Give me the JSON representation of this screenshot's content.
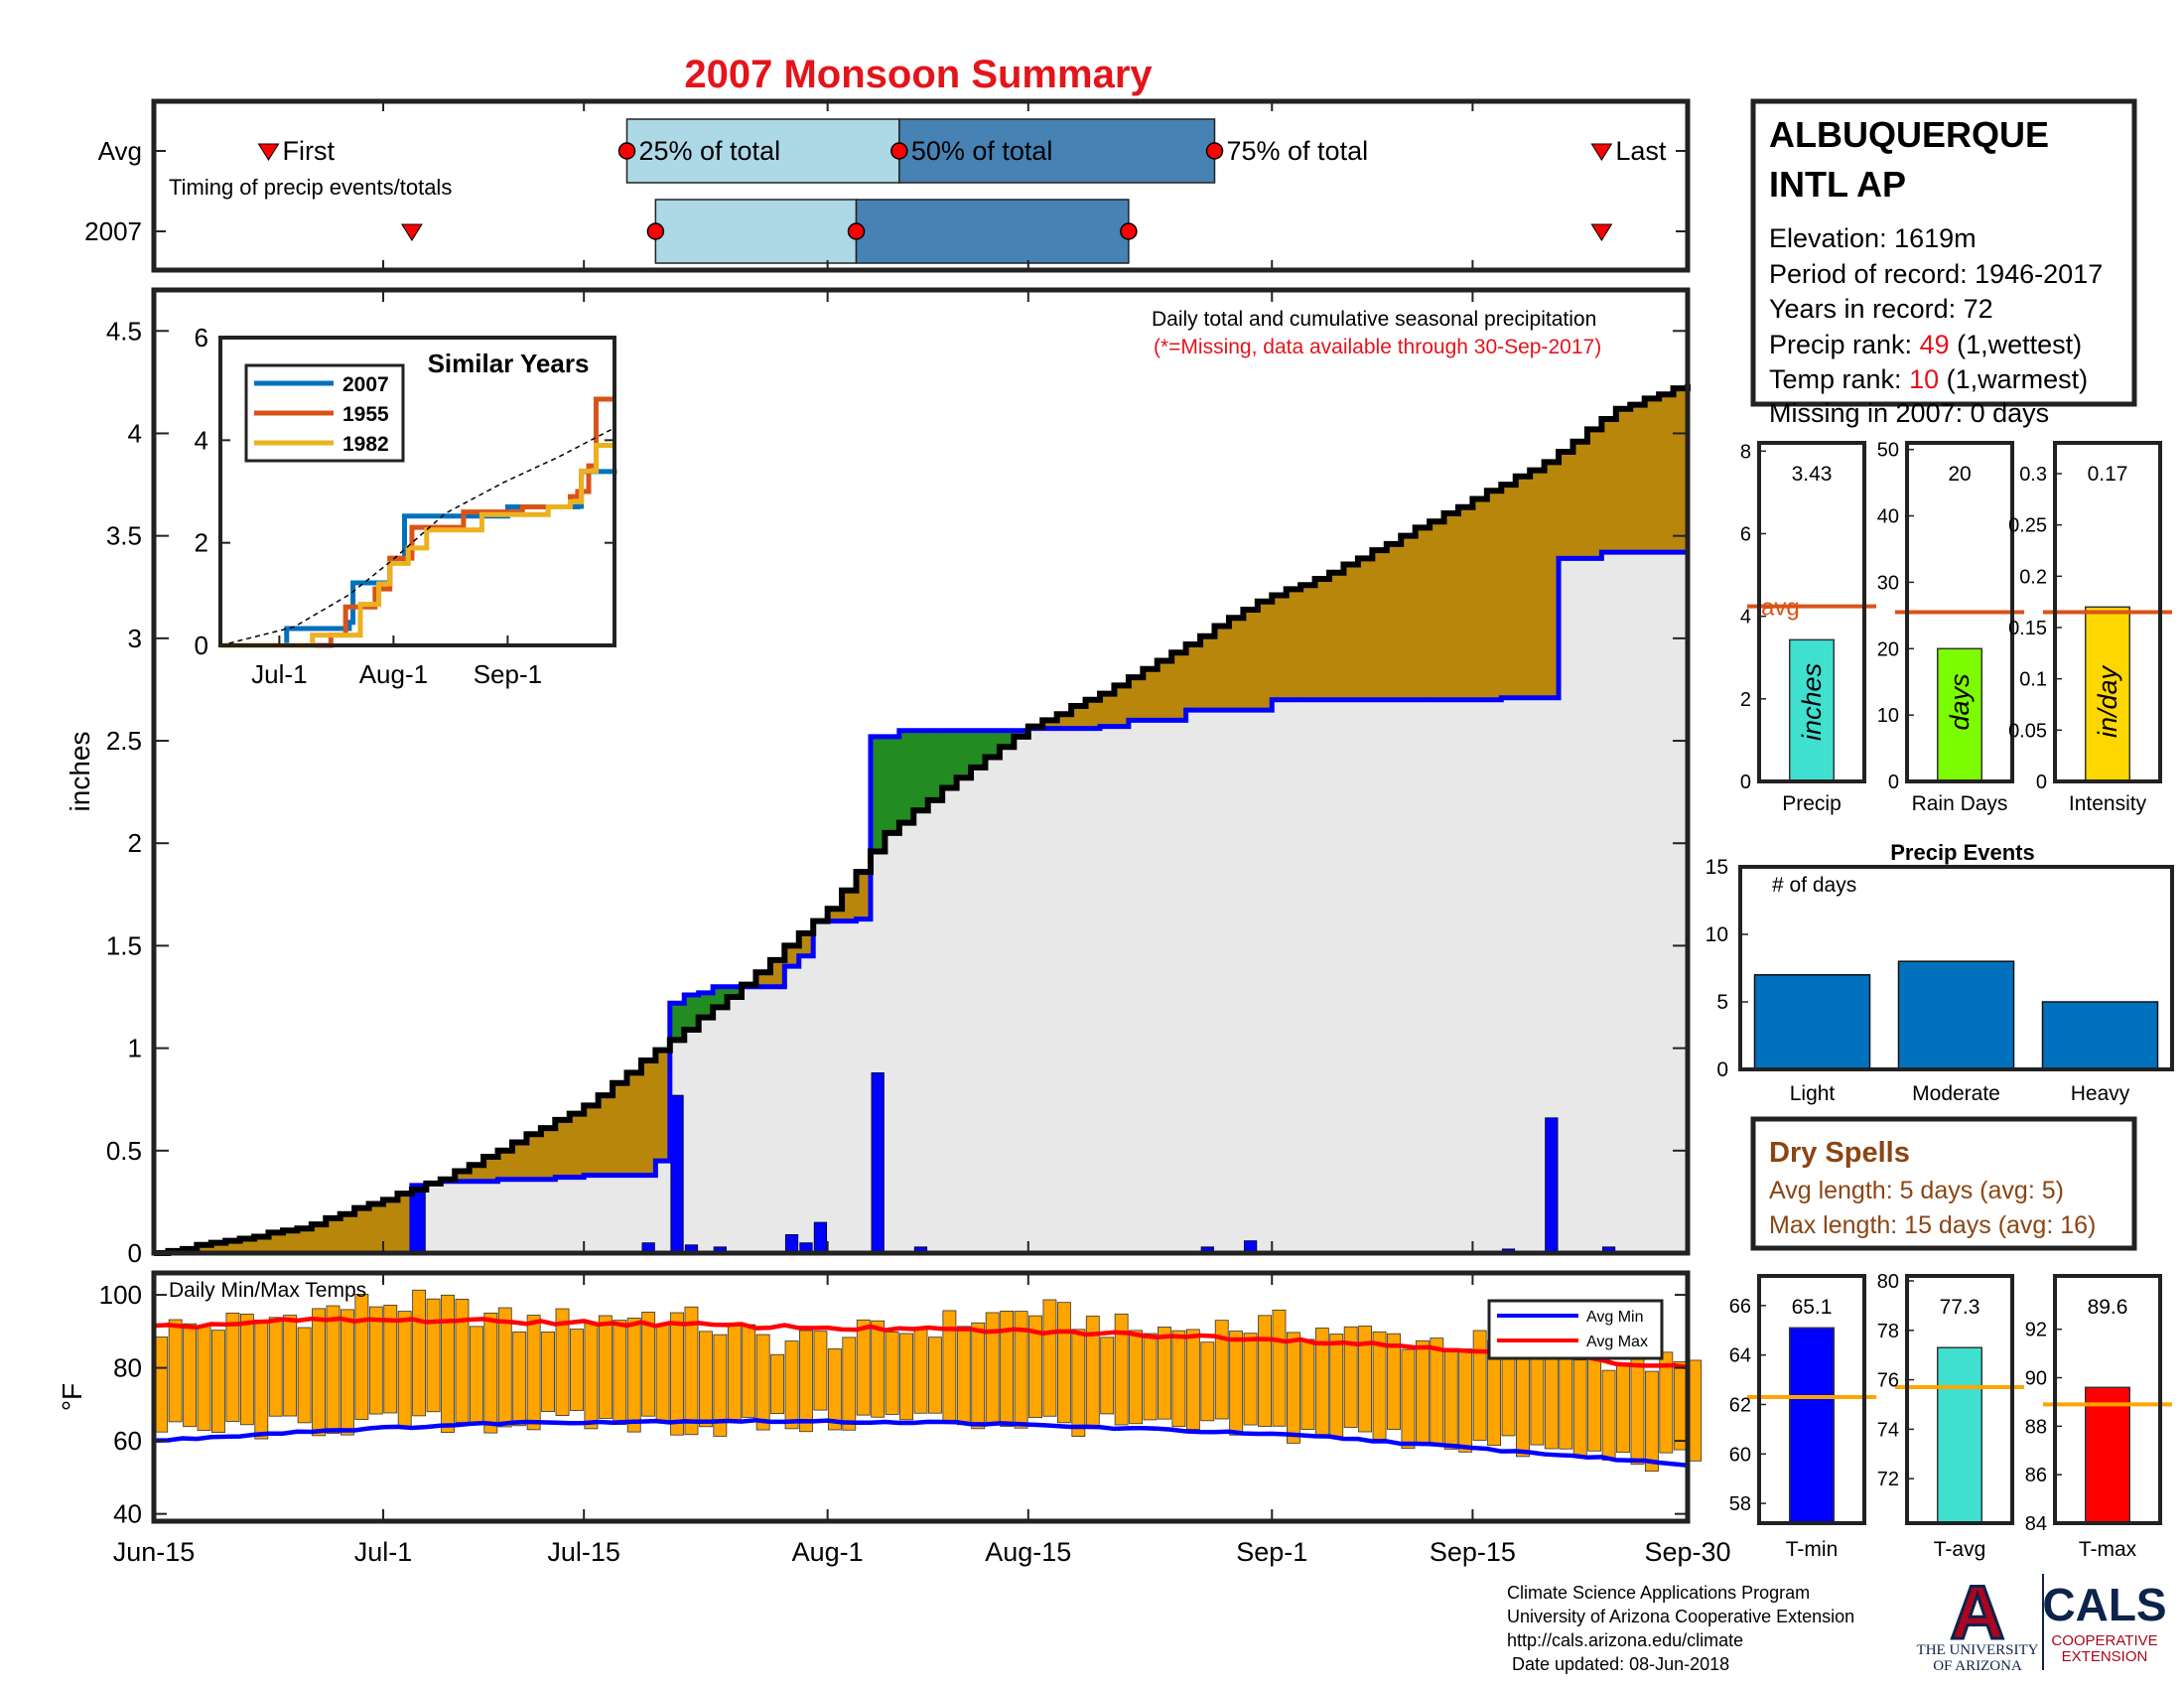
{
  "title": "2007 Monsoon Summary",
  "colors": {
    "title": "#e4141b",
    "cum2007": "#000000",
    "cumAvg": "#0000ff",
    "aboveFill": "#b8860b",
    "belowFill": "#228b22",
    "avgArea": "#e8e8e8",
    "dailyBar": "#0000ff",
    "q1": "#add8e6",
    "q2": "#4682b4",
    "marker": "#ff0000",
    "tempBar": "#ffa500",
    "avgMin": "#0000ff",
    "avgMax": "#ff0000",
    "avgLine": "#d95319",
    "tAvgLine": "#ffa500",
    "eventBar": "#0072bd",
    "drySpells": "#8b4513",
    "uaRed": "#ab0520",
    "uaBlue": "#0c234b"
  },
  "timing": {
    "row_labels": [
      "Avg",
      "2007"
    ],
    "caption": "Timing of precip events/totals",
    "labels": {
      "first": "First",
      "q25": "25% of total",
      "q50": "50% of total",
      "q75": "75% of total",
      "last": "Last"
    },
    "avg": {
      "first": "2007-06-23",
      "q25": "2007-07-18",
      "q50": "2007-08-06",
      "q75": "2007-08-28",
      "last": "2007-09-24"
    },
    "y2007": {
      "first": "2007-07-03",
      "q25": "2007-07-20",
      "q50": "2007-08-03",
      "q75": "2007-08-22",
      "last": "2007-09-24"
    }
  },
  "chart_data": [
    {
      "name": "cumulative_precip",
      "type": "area",
      "annotation": "Daily total and cumulative seasonal precipitation",
      "missing_note": "(*=Missing, data available through 30-Sep-2017)",
      "ylabel": "inches",
      "ylim": [
        0,
        4.7
      ],
      "yticks": [
        0,
        0.5,
        1,
        1.5,
        2,
        2.5,
        3,
        3.5,
        4,
        4.5
      ],
      "xlim": [
        "2007-06-15",
        "2007-09-30"
      ],
      "xticks": [
        {
          "date": "2007-06-15",
          "label": "Jun-15"
        },
        {
          "date": "2007-07-01",
          "label": "Jul-1"
        },
        {
          "date": "2007-07-15",
          "label": "Jul-15"
        },
        {
          "date": "2007-08-01",
          "label": "Aug-1"
        },
        {
          "date": "2007-08-15",
          "label": "Aug-15"
        },
        {
          "date": "2007-09-01",
          "label": "Sep-1"
        },
        {
          "date": "2007-09-15",
          "label": "Sep-15"
        },
        {
          "date": "2007-09-30",
          "label": "Sep-30"
        }
      ],
      "avg_cumulative_curve": [
        [
          "2007-06-15",
          0.0
        ],
        [
          "2007-06-25",
          0.12
        ],
        [
          "2007-07-05",
          0.36
        ],
        [
          "2007-07-15",
          0.72
        ],
        [
          "2007-07-20",
          0.99
        ],
        [
          "2007-07-25",
          1.25
        ],
        [
          "2007-08-01",
          1.68
        ],
        [
          "2007-08-05",
          2.05
        ],
        [
          "2007-08-10",
          2.32
        ],
        [
          "2007-08-15",
          2.57
        ],
        [
          "2007-08-20",
          2.73
        ],
        [
          "2007-08-25",
          2.93
        ],
        [
          "2007-08-31",
          3.18
        ],
        [
          "2007-09-05",
          3.32
        ],
        [
          "2007-09-10",
          3.5
        ],
        [
          "2007-09-15",
          3.68
        ],
        [
          "2007-09-20",
          3.86
        ],
        [
          "2007-09-25",
          4.12
        ],
        [
          "2007-09-30",
          4.24
        ]
      ],
      "cumulative_2007": [
        [
          "2007-06-15",
          0.0
        ],
        [
          "2007-07-03",
          0.33
        ],
        [
          "2007-07-04",
          0.34
        ],
        [
          "2007-07-05",
          0.35
        ],
        [
          "2007-07-09",
          0.36
        ],
        [
          "2007-07-13",
          0.37
        ],
        [
          "2007-07-15",
          0.38
        ],
        [
          "2007-07-20",
          0.45
        ],
        [
          "2007-07-21",
          1.22
        ],
        [
          "2007-07-22",
          1.26
        ],
        [
          "2007-07-23",
          1.27
        ],
        [
          "2007-07-24",
          1.3
        ],
        [
          "2007-07-29",
          1.4
        ],
        [
          "2007-07-30",
          1.45
        ],
        [
          "2007-07-31",
          1.62
        ],
        [
          "2007-08-03",
          1.63
        ],
        [
          "2007-08-04",
          2.52
        ],
        [
          "2007-08-06",
          2.55
        ],
        [
          "2007-08-15",
          2.56
        ],
        [
          "2007-08-20",
          2.57
        ],
        [
          "2007-08-22",
          2.6
        ],
        [
          "2007-08-26",
          2.65
        ],
        [
          "2007-09-01",
          2.7
        ],
        [
          "2007-09-17",
          2.71
        ],
        [
          "2007-09-21",
          3.39
        ],
        [
          "2007-09-24",
          3.42
        ],
        [
          "2007-09-30",
          3.43
        ]
      ],
      "daily_2007": [
        [
          "2007-07-03",
          0.33
        ],
        [
          "2007-07-06",
          0.01
        ],
        [
          "2007-07-09",
          0.01
        ],
        [
          "2007-07-13",
          0.01
        ],
        [
          "2007-07-15",
          0.01
        ],
        [
          "2007-07-19",
          0.05
        ],
        [
          "2007-07-21",
          0.77
        ],
        [
          "2007-07-22",
          0.04
        ],
        [
          "2007-07-24",
          0.03
        ],
        [
          "2007-07-29",
          0.09
        ],
        [
          "2007-07-30",
          0.05
        ],
        [
          "2007-07-31",
          0.15
        ],
        [
          "2007-08-04",
          0.88
        ],
        [
          "2007-08-07",
          0.03
        ],
        [
          "2007-08-27",
          0.03
        ],
        [
          "2007-08-30",
          0.06
        ],
        [
          "2007-09-17",
          0.02
        ],
        [
          "2007-09-20",
          0.66
        ],
        [
          "2007-09-24",
          0.03
        ]
      ]
    },
    {
      "name": "similar_years",
      "type": "line",
      "title": "Similar Years",
      "ylim": [
        0,
        6
      ],
      "yticks": [
        0,
        2,
        4,
        6
      ],
      "xlim": [
        "2007-06-15",
        "2007-09-30"
      ],
      "xticks": [
        {
          "date": "2007-07-01",
          "label": "Jul-1"
        },
        {
          "date": "2007-08-01",
          "label": "Aug-1"
        },
        {
          "date": "2007-09-01",
          "label": "Sep-1"
        }
      ],
      "series": [
        {
          "name": "2007",
          "color": "#0072bd",
          "points": [
            [
              "2007-06-15",
              0
            ],
            [
              "2007-07-03",
              0.33
            ],
            [
              "2007-07-20",
              0.45
            ],
            [
              "2007-07-21",
              1.22
            ],
            [
              "2007-07-31",
              1.62
            ],
            [
              "2007-08-04",
              2.52
            ],
            [
              "2007-09-01",
              2.7
            ],
            [
              "2007-09-20",
              2.71
            ],
            [
              "2007-09-21",
              3.39
            ],
            [
              "2007-09-30",
              3.43
            ]
          ]
        },
        {
          "name": "1955",
          "color": "#d95319",
          "points": [
            [
              "2007-06-15",
              0
            ],
            [
              "2007-07-15",
              0.2
            ],
            [
              "2007-07-19",
              0.75
            ],
            [
              "2007-07-27",
              1.1
            ],
            [
              "2007-07-31",
              1.7
            ],
            [
              "2007-08-06",
              2.3
            ],
            [
              "2007-08-20",
              2.6
            ],
            [
              "2007-09-05",
              2.7
            ],
            [
              "2007-09-18",
              2.9
            ],
            [
              "2007-09-20",
              3.0
            ],
            [
              "2007-09-23",
              3.5
            ],
            [
              "2007-09-25",
              4.8
            ],
            [
              "2007-09-30",
              4.8
            ]
          ]
        },
        {
          "name": "1982",
          "color": "#edb120",
          "points": [
            [
              "2007-06-15",
              0
            ],
            [
              "2007-07-10",
              0.2
            ],
            [
              "2007-07-23",
              0.8
            ],
            [
              "2007-07-28",
              1.2
            ],
            [
              "2007-07-31",
              1.6
            ],
            [
              "2007-08-05",
              1.9
            ],
            [
              "2007-08-10",
              2.25
            ],
            [
              "2007-08-25",
              2.55
            ],
            [
              "2007-09-12",
              2.7
            ],
            [
              "2007-09-18",
              2.8
            ],
            [
              "2007-09-21",
              3.4
            ],
            [
              "2007-09-25",
              3.9
            ],
            [
              "2007-09-30",
              3.9
            ]
          ]
        },
        {
          "name": "avg",
          "color": "#000000",
          "dashed": true,
          "points": [
            [
              "2007-06-15",
              0
            ],
            [
              "2007-07-05",
              0.36
            ],
            [
              "2007-07-20",
              0.99
            ],
            [
              "2007-08-01",
              1.68
            ],
            [
              "2007-08-15",
              2.57
            ],
            [
              "2007-08-31",
              3.18
            ],
            [
              "2007-09-15",
              3.68
            ],
            [
              "2007-09-30",
              4.24
            ]
          ]
        }
      ]
    },
    {
      "name": "daily_temps",
      "type": "bar",
      "title": "Daily Min/Max Temps",
      "ylabel": "°F",
      "ylim": [
        38,
        106
      ],
      "yticks": [
        40,
        60,
        80,
        100
      ],
      "legend": [
        "Avg Min",
        "Avg Max"
      ],
      "max_anchors": [
        [
          "2007-06-15",
          91
        ],
        [
          "2007-06-22",
          93
        ],
        [
          "2007-06-30",
          98
        ],
        [
          "2007-07-05",
          97
        ],
        [
          "2007-07-10",
          92
        ],
        [
          "2007-07-20",
          95
        ],
        [
          "2007-07-28",
          87
        ],
        [
          "2007-08-05",
          90
        ],
        [
          "2007-08-15",
          96
        ],
        [
          "2007-08-22",
          90
        ],
        [
          "2007-09-01",
          92
        ],
        [
          "2007-09-10",
          88
        ],
        [
          "2007-09-18",
          86
        ],
        [
          "2007-09-30",
          80
        ]
      ],
      "min_anchors": [
        [
          "2007-06-15",
          62
        ],
        [
          "2007-06-25",
          64
        ],
        [
          "2007-07-05",
          65
        ],
        [
          "2007-07-15",
          65
        ],
        [
          "2007-07-25",
          64
        ],
        [
          "2007-08-05",
          66
        ],
        [
          "2007-08-15",
          65
        ],
        [
          "2007-08-25",
          63
        ],
        [
          "2007-09-05",
          62
        ],
        [
          "2007-09-15",
          59
        ],
        [
          "2007-09-22",
          56
        ],
        [
          "2007-09-30",
          54
        ]
      ],
      "avg_max_curve": [
        [
          "2007-06-15",
          91
        ],
        [
          "2007-06-25",
          93
        ],
        [
          "2007-07-05",
          93
        ],
        [
          "2007-07-20",
          92
        ],
        [
          "2007-08-01",
          91
        ],
        [
          "2007-08-15",
          90
        ],
        [
          "2007-09-01",
          88
        ],
        [
          "2007-09-15",
          85
        ],
        [
          "2007-09-30",
          80
        ]
      ],
      "avg_min_curve": [
        [
          "2007-06-15",
          60
        ],
        [
          "2007-06-25",
          62.5
        ],
        [
          "2007-07-10",
          65
        ],
        [
          "2007-07-25",
          65.5
        ],
        [
          "2007-08-10",
          65
        ],
        [
          "2007-08-25",
          63
        ],
        [
          "2007-09-05",
          61
        ],
        [
          "2007-09-15",
          58
        ],
        [
          "2007-09-30",
          53.5
        ]
      ]
    },
    {
      "name": "season_stats",
      "type": "bar",
      "panels": [
        {
          "key": "precip",
          "label": "Precip",
          "unit": "inches",
          "value": 3.43,
          "value_label": "3.43",
          "avg": 4.24,
          "avg_label": "avg",
          "ylim": [
            0,
            8.2
          ],
          "yticks": [
            0,
            2,
            4,
            6,
            8
          ],
          "ytick_labels": [
            "0",
            "2",
            "4",
            "6",
            "8"
          ],
          "color": "#40e0d0"
        },
        {
          "key": "raindays",
          "label": "Rain Days",
          "unit": "days",
          "value": 20,
          "value_label": "20",
          "avg": 25.5,
          "ylim": [
            0,
            51
          ],
          "yticks": [
            0,
            10,
            20,
            30,
            40,
            50
          ],
          "ytick_labels": [
            "0",
            "10",
            "20",
            "30",
            "40",
            "50"
          ],
          "color": "#7cfc00"
        },
        {
          "key": "intensity",
          "label": "Intensity",
          "unit": "in/day",
          "value": 0.17,
          "value_label": "0.17",
          "avg": 0.165,
          "ylim": [
            0,
            0.33
          ],
          "yticks": [
            0,
            0.05,
            0.1,
            0.15,
            0.2,
            0.25,
            0.3
          ],
          "ytick_labels": [
            "0",
            "0.05",
            "0.1",
            "0.15",
            "0.2",
            "0.25",
            "0.3"
          ],
          "color": "#ffd700"
        }
      ]
    },
    {
      "name": "precip_events",
      "type": "bar",
      "title": "Precip Events",
      "ylabel": "# of days",
      "ylim": [
        0,
        15
      ],
      "yticks": [
        0,
        5,
        10,
        15
      ],
      "categories": [
        "Light",
        "Moderate",
        "Heavy"
      ],
      "values": [
        7,
        8,
        5
      ]
    },
    {
      "name": "temp_stats",
      "type": "bar",
      "panels": [
        {
          "key": "tmin",
          "label": "T-min",
          "value": 65.1,
          "value_label": "65.1",
          "avg": 62.3,
          "ylim": [
            57.2,
            67.2
          ],
          "yticks": [
            58,
            60,
            62,
            64,
            66
          ],
          "ytick_labels": [
            "58",
            "60",
            "62",
            "64",
            "66"
          ],
          "color": "#0000ff"
        },
        {
          "key": "tavg",
          "label": "T-avg",
          "value": 77.3,
          "value_label": "77.3",
          "avg": 75.7,
          "ylim": [
            70.2,
            80.2
          ],
          "yticks": [
            72,
            74,
            76,
            78,
            80
          ],
          "ytick_labels": [
            "72",
            "74",
            "76",
            "78",
            "80"
          ],
          "color": "#40e0d0"
        },
        {
          "key": "tmax",
          "label": "T-max",
          "value": 89.6,
          "value_label": "89.6",
          "avg": 88.9,
          "ylim": [
            84,
            94.2
          ],
          "yticks": [
            84,
            86,
            88,
            90,
            92
          ],
          "ytick_labels": [
            "84",
            "86",
            "88",
            "90",
            "92"
          ],
          "color": "#ff0000"
        }
      ]
    }
  ],
  "station": {
    "name_line1": "ALBUQUERQUE",
    "name_line2": "INTL AP",
    "elevation": "Elevation: 1619m",
    "period": "Period of record: 1946-2017",
    "years": "Years in record: 72",
    "precip_rank_label": "Precip rank: ",
    "precip_rank_value": "49",
    "precip_rank_suffix": " (1,wettest)",
    "temp_rank_label": "Temp rank: ",
    "temp_rank_value": "10",
    "temp_rank_suffix": " (1,warmest)",
    "missing": "Missing in 2007: 0 days"
  },
  "dry_spells": {
    "title": "Dry Spells",
    "avg_length": "Avg length: 5 days (avg: 5)",
    "max_length": "Max length: 15 days (avg: 16)"
  },
  "footer": {
    "line1": "Climate Science Applications Program",
    "line2": "University of Arizona Cooperative Extension",
    "line3": "http://cals.arizona.edu/climate",
    "line4": " Date updated: 08-Jun-2018"
  },
  "logos": {
    "ua_letter": "A",
    "ua_line1": "THE UNIVERSITY",
    "ua_line2": "OF ARIZONA",
    "cals": "CALS",
    "cals_line1": "COOPERATIVE",
    "cals_line2": "EXTENSION"
  }
}
